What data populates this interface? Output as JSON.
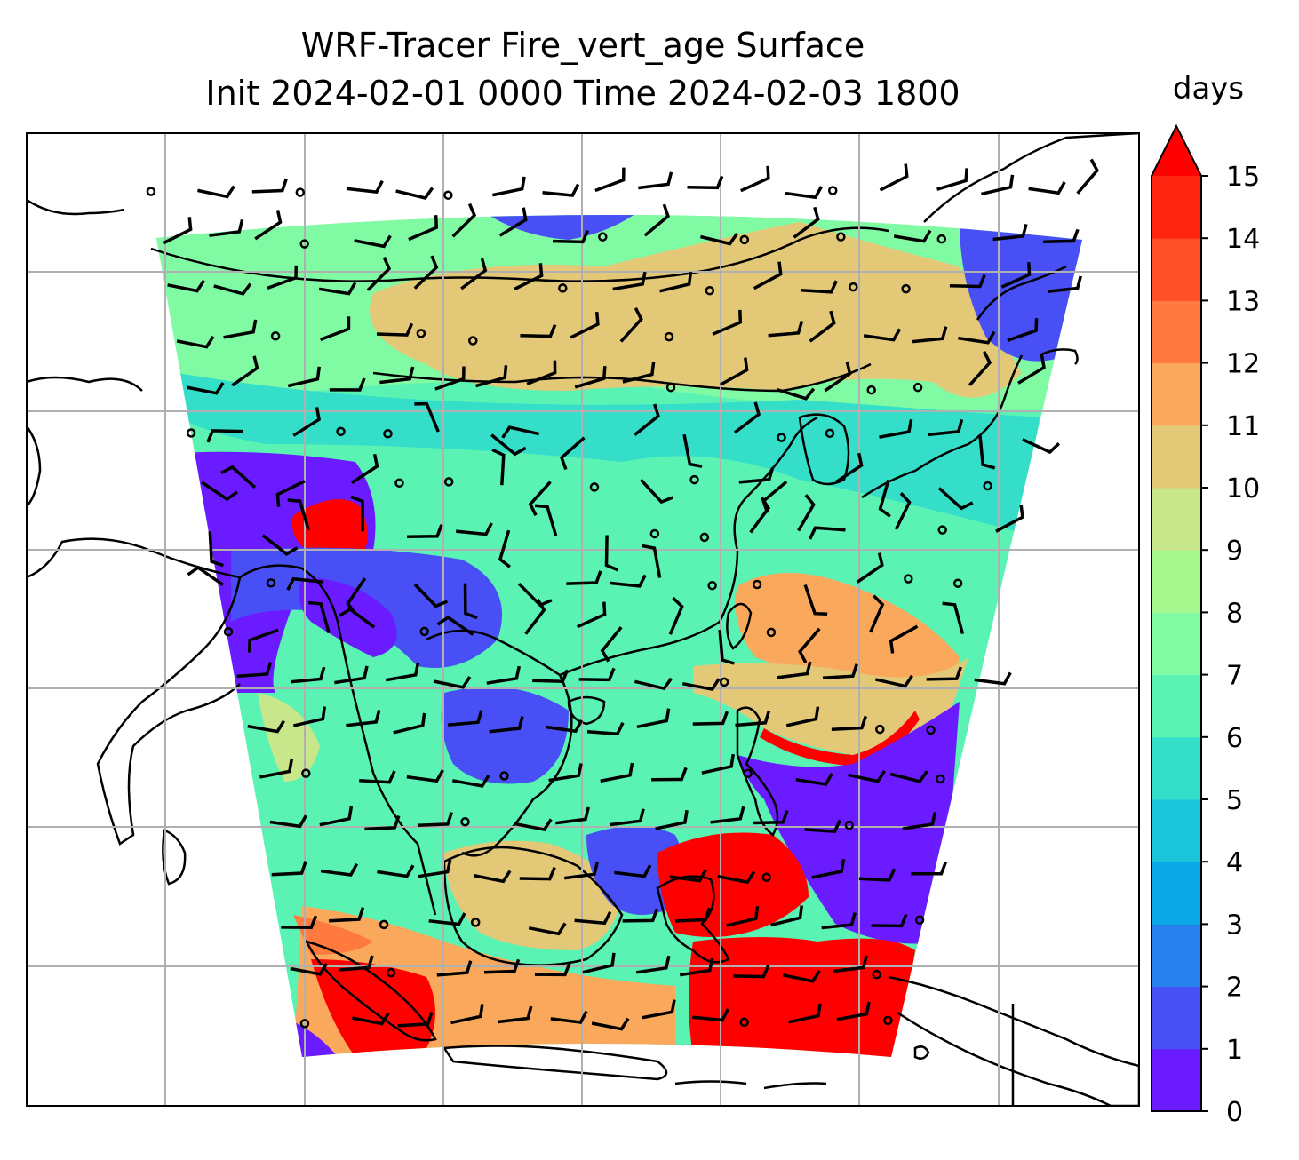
{
  "title": {
    "line1": "WRF-Tracer Fire_vert_age Surface",
    "line2": "Init 2024-02-01 0000 Time 2024-02-03 1800"
  },
  "colorbar": {
    "unit": "days",
    "ticks": [
      "0",
      "1",
      "2",
      "3",
      "4",
      "5",
      "6",
      "7",
      "8",
      "9",
      "10",
      "11",
      "12",
      "13",
      "14",
      "15"
    ],
    "extend": "max",
    "colors": [
      "#6a1bff",
      "#474ff5",
      "#2880ec",
      "#0aa8e6",
      "#1cc6da",
      "#35dec9",
      "#5af3b3",
      "#81fba3",
      "#a6f78e",
      "#c8e78a",
      "#e3c878",
      "#f9a85c",
      "#ff7a3f",
      "#ff5028",
      "#ff2410"
    ],
    "over_color": "#ff0000"
  },
  "map": {
    "field_colors": {
      "violet": "#6a1bff",
      "blue": "#474ff5",
      "cyan": "#35dec9",
      "mint": "#5af3b3",
      "green": "#81fba3",
      "lime": "#c8e78a",
      "tan": "#e3c878",
      "orange": "#f9a85c",
      "darkorange": "#ff7a3f",
      "red": "#ff0000"
    },
    "gridlines": true,
    "wind_barbs": true
  }
}
